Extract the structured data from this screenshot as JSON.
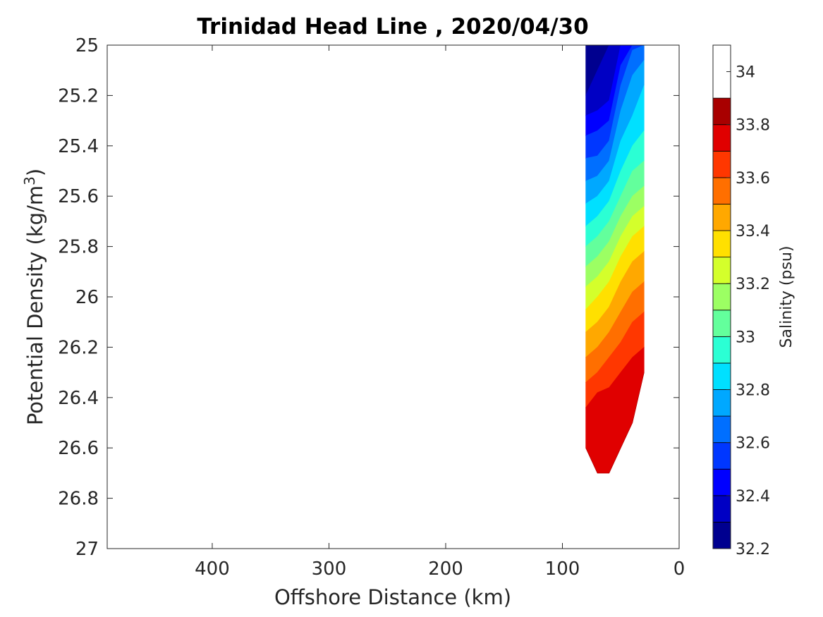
{
  "chart_data": {
    "type": "heatmap",
    "subtype": "filled-contour",
    "title": "Trinidad Head Line , 2020/04/30",
    "xlabel": "Offshore Distance (km)",
    "ylabel_main": "Potential Density (kg/m",
    "ylabel_sup": "3",
    "ylabel_close": ")",
    "x_reversed": true,
    "xlim": [
      0,
      490
    ],
    "y_reversed": true,
    "ylim": [
      25,
      27
    ],
    "x_ticks": [
      400,
      300,
      200,
      100,
      0
    ],
    "x_tick_labels": [
      "400",
      "300",
      "200",
      "100",
      "0"
    ],
    "y_ticks": [
      25,
      25.2,
      25.4,
      25.6,
      25.8,
      26,
      26.2,
      26.4,
      26.6,
      26.8,
      27
    ],
    "y_tick_labels": [
      "25",
      "25.2",
      "25.4",
      "25.6",
      "25.8",
      "26",
      "26.2",
      "26.4",
      "26.6",
      "26.8",
      "27"
    ],
    "grid": false,
    "colorbar": {
      "label": "Salinity (psu)",
      "range": [
        32.2,
        34.1
      ],
      "level_step": 0.1,
      "ticks": [
        32.2,
        32.4,
        32.6,
        32.8,
        33,
        33.2,
        33.4,
        33.6,
        33.8,
        34
      ],
      "tick_labels": [
        "32.2",
        "32.4",
        "32.6",
        "32.8",
        "33",
        "33.2",
        "33.4",
        "33.6",
        "33.8",
        "34"
      ],
      "colors": [
        "#00008f",
        "#0000c4",
        "#0000ff",
        "#0037ff",
        "#006fff",
        "#00a8ff",
        "#00e0ff",
        "#2bffd4",
        "#63ff9c",
        "#9cff63",
        "#d4ff2b",
        "#ffe000",
        "#ffa800",
        "#ff6f00",
        "#ff3700",
        "#e00000",
        "#a80000"
      ],
      "levels_start": [
        32.2,
        32.3,
        32.4,
        32.5,
        32.6,
        32.7,
        32.8,
        32.9,
        33.0,
        33.1,
        33.2,
        33.3,
        33.4,
        33.5,
        33.6,
        33.7,
        33.8
      ]
    },
    "station_distances_km": [
      30,
      40,
      50,
      60,
      70,
      80
    ],
    "profiles": [
      {
        "x": 80,
        "y": [
          25.0,
          25.2,
          25.28,
          25.36,
          25.45,
          25.54,
          25.63,
          25.72,
          25.8,
          25.88,
          25.96,
          26.05,
          26.14,
          26.24,
          26.34,
          26.44,
          26.6
        ]
      },
      {
        "x": 70,
        "y": [
          25.0,
          25.1,
          25.26,
          25.34,
          25.44,
          25.52,
          25.6,
          25.68,
          25.76,
          25.84,
          25.92,
          26.0,
          26.1,
          26.2,
          26.3,
          26.38,
          26.7
        ]
      },
      {
        "x": 60,
        "y": [
          25.0,
          25.0,
          25.22,
          25.3,
          25.38,
          25.46,
          25.54,
          25.62,
          25.7,
          25.78,
          25.86,
          25.94,
          26.04,
          26.14,
          26.24,
          26.36,
          26.7
        ]
      },
      {
        "x": 50,
        "y": [
          25.0,
          25.0,
          25.0,
          25.08,
          25.16,
          25.26,
          25.38,
          25.5,
          25.6,
          25.68,
          25.76,
          25.84,
          25.94,
          26.06,
          26.18,
          26.3,
          26.6
        ]
      },
      {
        "x": 40,
        "y": [
          25.0,
          25.0,
          25.0,
          25.0,
          25.02,
          25.12,
          25.28,
          25.4,
          25.5,
          25.6,
          25.68,
          25.76,
          25.86,
          25.98,
          26.1,
          26.24,
          26.5
        ]
      },
      {
        "x": 30,
        "y": [
          25.0,
          25.0,
          25.0,
          25.0,
          25.0,
          25.06,
          25.16,
          25.34,
          25.46,
          25.56,
          25.64,
          25.72,
          25.82,
          25.94,
          26.06,
          26.2,
          26.3
        ]
      }
    ]
  }
}
